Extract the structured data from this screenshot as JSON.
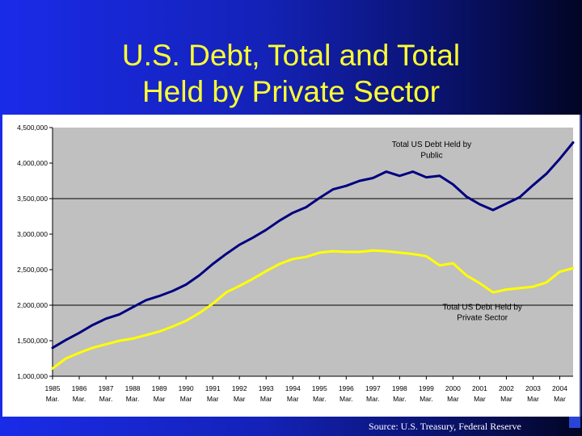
{
  "slide": {
    "title_line1": "U.S. Debt, Total and Total",
    "title_line2": "Held by Private Sector",
    "source": "Source: U.S. Treasury, Federal Reserve"
  },
  "colors": {
    "plot_bg": "#c0c0c0",
    "public_line": "#000080",
    "private_line": "#ffff00",
    "title_text": "#ffff33"
  },
  "chart_data": {
    "type": "line",
    "title": "",
    "xlabel": "",
    "ylabel": "",
    "ylim": [
      1000000,
      4500000
    ],
    "y_ticks": [
      1000000,
      1500000,
      2000000,
      2500000,
      3000000,
      3500000,
      4000000,
      4500000
    ],
    "y_tick_labels": [
      "1,000,000",
      "1,500,000",
      "2,000,000",
      "2,500,000",
      "3,000,000",
      "3,500,000",
      "4,000,000",
      "4,500,000"
    ],
    "x_range": [
      1985,
      2004.5
    ],
    "x_ticks": [
      {
        "x": 1985,
        "year": "1985",
        "month": "Mar."
      },
      {
        "x": 1986,
        "year": "1986",
        "month": "Mar."
      },
      {
        "x": 1987,
        "year": "1987",
        "month": "Mar."
      },
      {
        "x": 1988,
        "year": "1988",
        "month": "Mar."
      },
      {
        "x": 1989,
        "year": "1989",
        "month": "Mar"
      },
      {
        "x": 1990,
        "year": "1990",
        "month": "Mar"
      },
      {
        "x": 1991,
        "year": "1991",
        "month": "Mar"
      },
      {
        "x": 1992,
        "year": "1992",
        "month": "Mar"
      },
      {
        "x": 1993,
        "year": "1993",
        "month": "Mar"
      },
      {
        "x": 1994,
        "year": "1994",
        "month": "Mar"
      },
      {
        "x": 1995,
        "year": "1995",
        "month": "Mar."
      },
      {
        "x": 1996,
        "year": "1996",
        "month": "Mar."
      },
      {
        "x": 1997,
        "year": "1997",
        "month": "Mar."
      },
      {
        "x": 1998,
        "year": "1998",
        "month": "Mar."
      },
      {
        "x": 1999,
        "year": "1999",
        "month": "Mar."
      },
      {
        "x": 2000,
        "year": "2000",
        "month": "Mar"
      },
      {
        "x": 2001,
        "year": "2001",
        "month": "Mar"
      },
      {
        "x": 2002,
        "year": "2002",
        "month": "Mar"
      },
      {
        "x": 2003,
        "year": "2003",
        "month": "Mar"
      },
      {
        "x": 2004,
        "year": "2004",
        "month": "Mar"
      }
    ],
    "reference_lines": [
      3500000,
      2000000
    ],
    "series": [
      {
        "name": "Total US Debt Held by Public",
        "label_lines": [
          "Total US Debt Held by",
          "Public"
        ],
        "x": [
          1985,
          1985.5,
          1986,
          1986.5,
          1987,
          1987.5,
          1988,
          1988.5,
          1989,
          1989.5,
          1990,
          1990.5,
          1991,
          1991.5,
          1992,
          1992.5,
          1993,
          1993.5,
          1994,
          1994.5,
          1995,
          1995.5,
          1996,
          1996.5,
          1997,
          1997.5,
          1998,
          1998.5,
          1999,
          1999.5,
          2000,
          2000.5,
          2001,
          2001.5,
          2002,
          2002.5,
          2003,
          2003.5,
          2004,
          2004.5
        ],
        "values": [
          1400000,
          1510000,
          1610000,
          1720000,
          1810000,
          1870000,
          1970000,
          2070000,
          2130000,
          2200000,
          2290000,
          2420000,
          2580000,
          2720000,
          2850000,
          2950000,
          3060000,
          3190000,
          3300000,
          3380000,
          3510000,
          3630000,
          3680000,
          3750000,
          3790000,
          3880000,
          3820000,
          3880000,
          3800000,
          3820000,
          3700000,
          3530000,
          3420000,
          3340000,
          3430000,
          3520000,
          3690000,
          3850000,
          4060000,
          4290000
        ]
      },
      {
        "name": "Total US Debt Held by Private Sector",
        "label_lines": [
          "Total US Debt Held by",
          "Private Sector"
        ],
        "x": [
          1985,
          1985.5,
          1986,
          1986.5,
          1987,
          1987.5,
          1988,
          1988.5,
          1989,
          1989.5,
          1990,
          1990.5,
          1991,
          1991.5,
          1992,
          1992.5,
          1993,
          1993.5,
          1994,
          1994.5,
          1995,
          1995.5,
          1996,
          1996.5,
          1997,
          1997.5,
          1998,
          1998.5,
          1999,
          1999.5,
          2000,
          2000.5,
          2001,
          2001.5,
          2002,
          2002.5,
          2003,
          2003.5,
          2004,
          2004.5
        ],
        "values": [
          1110000,
          1250000,
          1330000,
          1400000,
          1450000,
          1500000,
          1530000,
          1580000,
          1630000,
          1700000,
          1780000,
          1890000,
          2020000,
          2180000,
          2270000,
          2370000,
          2480000,
          2580000,
          2650000,
          2680000,
          2740000,
          2760000,
          2750000,
          2750000,
          2770000,
          2760000,
          2740000,
          2720000,
          2690000,
          2560000,
          2590000,
          2420000,
          2310000,
          2180000,
          2220000,
          2240000,
          2260000,
          2320000,
          2470000,
          2520000
        ]
      }
    ]
  }
}
